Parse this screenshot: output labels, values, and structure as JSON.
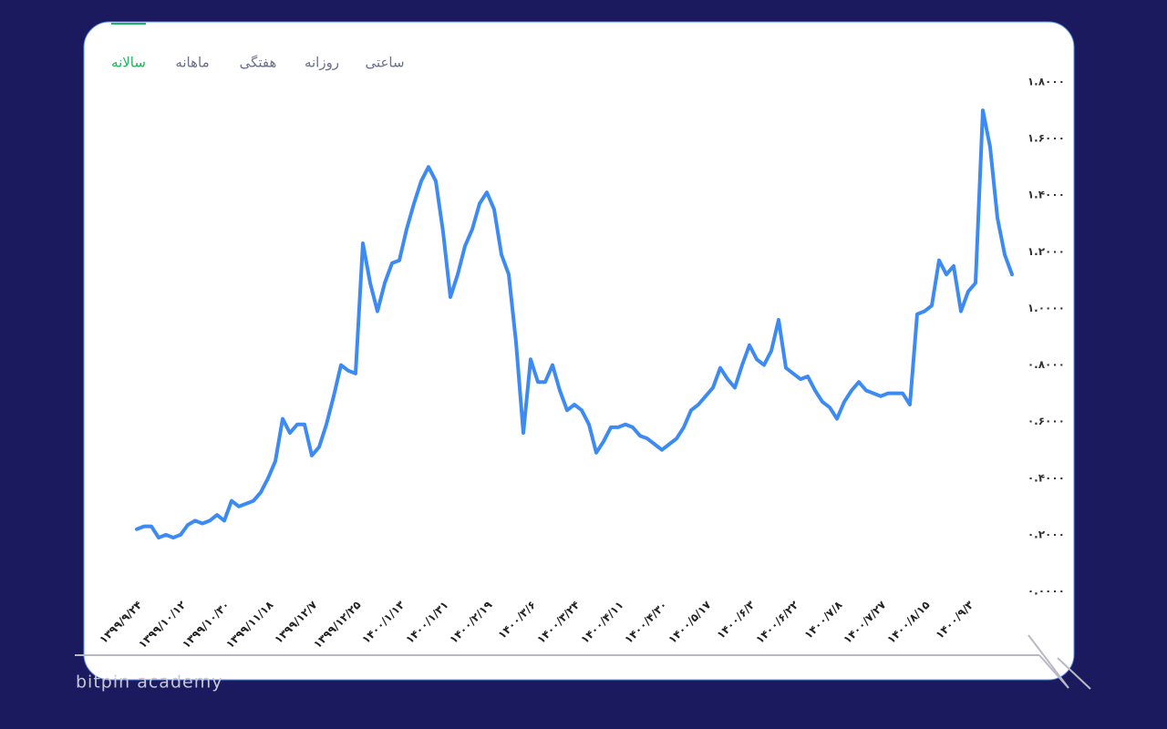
{
  "tabs": [
    "ساعتی",
    "روزانه",
    "هفتگی",
    "ماهانه",
    "سالانه"
  ],
  "active_tab": 4,
  "watermark": "bitpin academy",
  "chart_data": {
    "type": "line",
    "categories": [
      "۱۳۹۹/۹/۲۴",
      null,
      null,
      null,
      null,
      null,
      "۱۳۹۹/۱۰/۱۲",
      null,
      null,
      null,
      null,
      null,
      "۱۳۹۹/۱۰/۳۰",
      null,
      null,
      null,
      null,
      null,
      "۱۳۹۹/۱۱/۱۸",
      null,
      null,
      null,
      null,
      null,
      "۱۳۹۹/۱۲/۷",
      null,
      null,
      null,
      null,
      null,
      "۱۳۹۹/۱۲/۲۵",
      null,
      null,
      null,
      null,
      null,
      "۱۴۰۰/۱/۱۳",
      null,
      null,
      null,
      null,
      null,
      "۱۴۰۰/۱/۳۱",
      null,
      null,
      null,
      null,
      null,
      "۱۴۰۰/۲/۱۹",
      null,
      null,
      null,
      null,
      null,
      "۱۴۰۰/۳/۶",
      null,
      null,
      null,
      null,
      null,
      "۱۴۰۰/۳/۲۴",
      null,
      null,
      null,
      null,
      null,
      "۱۴۰۰/۴/۱۱",
      null,
      null,
      null,
      null,
      null,
      "۱۴۰۰/۴/۳۰",
      null,
      null,
      null,
      null,
      null,
      "۱۴۰۰/۵/۱۷",
      null,
      null,
      null,
      null,
      null,
      "۱۴۰۰/۶/۳",
      null,
      null,
      null,
      null,
      null,
      "۱۴۰۰/۶/۲۲",
      null,
      null,
      null,
      null,
      null,
      "۱۴۰۰/۷/۸",
      null,
      null,
      null,
      null,
      null,
      "۱۴۰۰/۷/۲۷",
      null,
      null,
      null,
      null,
      null,
      "۱۴۰۰/۸/۱۵",
      null,
      null,
      null,
      null,
      null,
      "۱۴۰۰/۹/۳",
      null,
      null,
      null,
      null,
      null,
      null
    ],
    "series": [
      {
        "color": "#3d8bf2",
        "values": [
          0.22,
          0.23,
          0.23,
          0.19,
          0.2,
          0.19,
          0.2,
          0.235,
          0.25,
          0.24,
          0.25,
          0.27,
          0.25,
          0.32,
          0.3,
          0.31,
          0.32,
          0.35,
          0.4,
          0.46,
          0.61,
          0.56,
          0.59,
          0.59,
          0.48,
          0.51,
          0.59,
          0.69,
          0.8,
          0.78,
          0.77,
          1.23,
          1.09,
          0.99,
          1.09,
          1.16,
          1.17,
          1.28,
          1.37,
          1.45,
          1.5,
          1.45,
          1.27,
          1.04,
          1.12,
          1.22,
          1.28,
          1.37,
          1.41,
          1.35,
          1.19,
          1.12,
          0.88,
          0.56,
          0.82,
          0.74,
          0.74,
          0.8,
          0.71,
          0.64,
          0.66,
          0.64,
          0.59,
          0.49,
          0.53,
          0.58,
          0.58,
          0.59,
          0.58,
          0.55,
          0.54,
          0.52,
          0.5,
          0.52,
          0.54,
          0.58,
          0.64,
          0.66,
          0.69,
          0.72,
          0.79,
          0.75,
          0.72,
          0.8,
          0.87,
          0.82,
          0.8,
          0.85,
          0.96,
          0.79,
          0.77,
          0.75,
          0.76,
          0.71,
          0.67,
          0.65,
          0.61,
          0.67,
          0.71,
          0.74,
          0.71,
          0.7,
          0.69,
          0.7,
          0.7,
          0.7,
          0.66,
          0.98,
          0.99,
          1.01,
          1.17,
          1.12,
          1.15,
          0.99,
          1.06,
          1.09,
          1.7,
          1.57,
          1.32,
          1.19,
          1.12
        ]
      }
    ],
    "ylim": [
      0,
      1.8
    ],
    "yticks": [
      {
        "value": 0,
        "label": "۰.۰۰۰۰"
      },
      {
        "value": 0.2,
        "label": "۰.۲۰۰۰"
      },
      {
        "value": 0.4,
        "label": "۰.۴۰۰۰"
      },
      {
        "value": 0.6,
        "label": "۰.۶۰۰۰"
      },
      {
        "value": 0.8,
        "label": "۰.۸۰۰۰"
      },
      {
        "value": 1,
        "label": "۱.۰۰۰۰"
      },
      {
        "value": 1.2,
        "label": "۱.۲۰۰۰"
      },
      {
        "value": 1.4,
        "label": "۱.۴۰۰۰"
      },
      {
        "value": 1.6,
        "label": "۱.۶۰۰۰"
      },
      {
        "value": 1.8,
        "label": "۱.۸۰۰۰"
      }
    ],
    "grid": false
  }
}
